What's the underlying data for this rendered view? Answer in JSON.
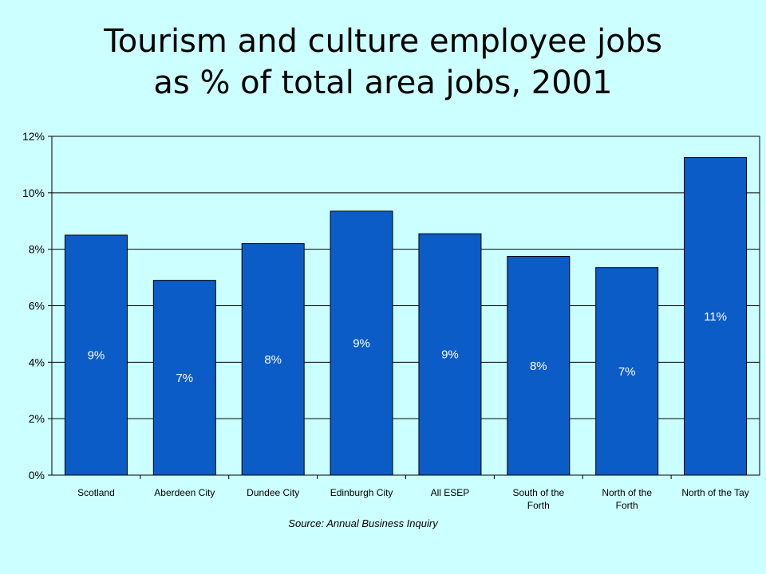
{
  "chart_data": {
    "type": "bar",
    "title_lines": [
      "Tourism and culture employee jobs",
      "as % of total area jobs, 2001"
    ],
    "categories": [
      [
        "Scotland"
      ],
      [
        "Aberdeen City"
      ],
      [
        "Dundee City"
      ],
      [
        "Edinburgh City"
      ],
      [
        "All ESEP"
      ],
      [
        "South of the",
        "Forth"
      ],
      [
        "North of the",
        "Forth"
      ],
      [
        "North of the Tay"
      ]
    ],
    "values": [
      8.5,
      6.9,
      8.2,
      9.35,
      8.55,
      7.75,
      7.35,
      11.25
    ],
    "data_labels": [
      "9%",
      "7%",
      "8%",
      "9%",
      "9%",
      "8%",
      "7%",
      "11%"
    ],
    "ylim": [
      0,
      12
    ],
    "yticks": [
      0,
      2,
      4,
      6,
      8,
      10,
      12
    ],
    "ytick_labels": [
      "0%",
      "2%",
      "4%",
      "6%",
      "8%",
      "10%",
      "12%"
    ],
    "grid": true,
    "bar_color": "#0B5CC7",
    "source": "Source: Annual Business Inquiry"
  }
}
